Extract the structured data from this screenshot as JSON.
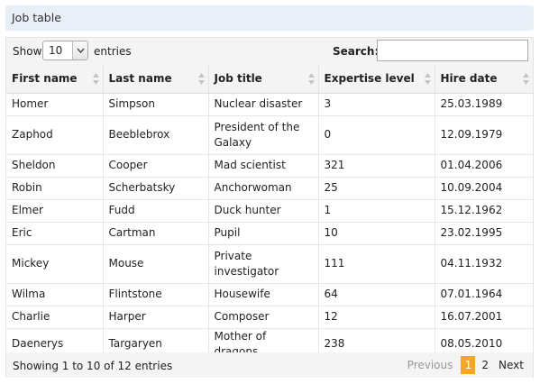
{
  "panel": {
    "title": "Job table"
  },
  "toolbar": {
    "show_label": "Show",
    "entries_value": "10",
    "entries_label": "entries",
    "search_label": "Search:",
    "search_value": "",
    "search_placeholder": ""
  },
  "table": {
    "columns": [
      "First name",
      "Last name",
      "Job title",
      "Expertise level",
      "Hire date"
    ],
    "rows": [
      [
        "Homer",
        "Simpson",
        "Nuclear disaster",
        "3",
        "25.03.1989"
      ],
      [
        "Zaphod",
        "Beeblebrox",
        "President of the Galaxy",
        "0",
        "12.09.1979"
      ],
      [
        "Sheldon",
        "Cooper",
        "Mad scientist",
        "321",
        "01.04.2006"
      ],
      [
        "Robin",
        "Scherbatsky",
        "Anchorwoman",
        "25",
        "10.09.2004"
      ],
      [
        "Elmer",
        "Fudd",
        "Duck hunter",
        "1",
        "15.12.1962"
      ],
      [
        "Eric",
        "Cartman",
        "Pupil",
        "10",
        "23.02.1995"
      ],
      [
        "Mickey",
        "Mouse",
        "Private investigator",
        "111",
        "04.11.1932"
      ],
      [
        "Wilma",
        "Flintstone",
        "Housewife",
        "64",
        "07.01.1964"
      ],
      [
        "Charlie",
        "Harper",
        "Composer",
        "12",
        "16.07.2001"
      ],
      [
        "Daenerys",
        "Targaryen",
        "Mother of dragons",
        "238",
        "08.05.2010"
      ]
    ]
  },
  "footer": {
    "info": "Showing 1 to 10 of 12 entries",
    "previous_label": "Previous",
    "current_page": "1",
    "other_page": "2",
    "next_label": "Next"
  },
  "colors": {
    "accent": "#f5a623",
    "title_bg": "#e9eff6",
    "toolbar_bg": "#f4f4f4"
  },
  "icons": {
    "sort": "sort-both-icon",
    "dropdown": "chevron-down-icon"
  }
}
